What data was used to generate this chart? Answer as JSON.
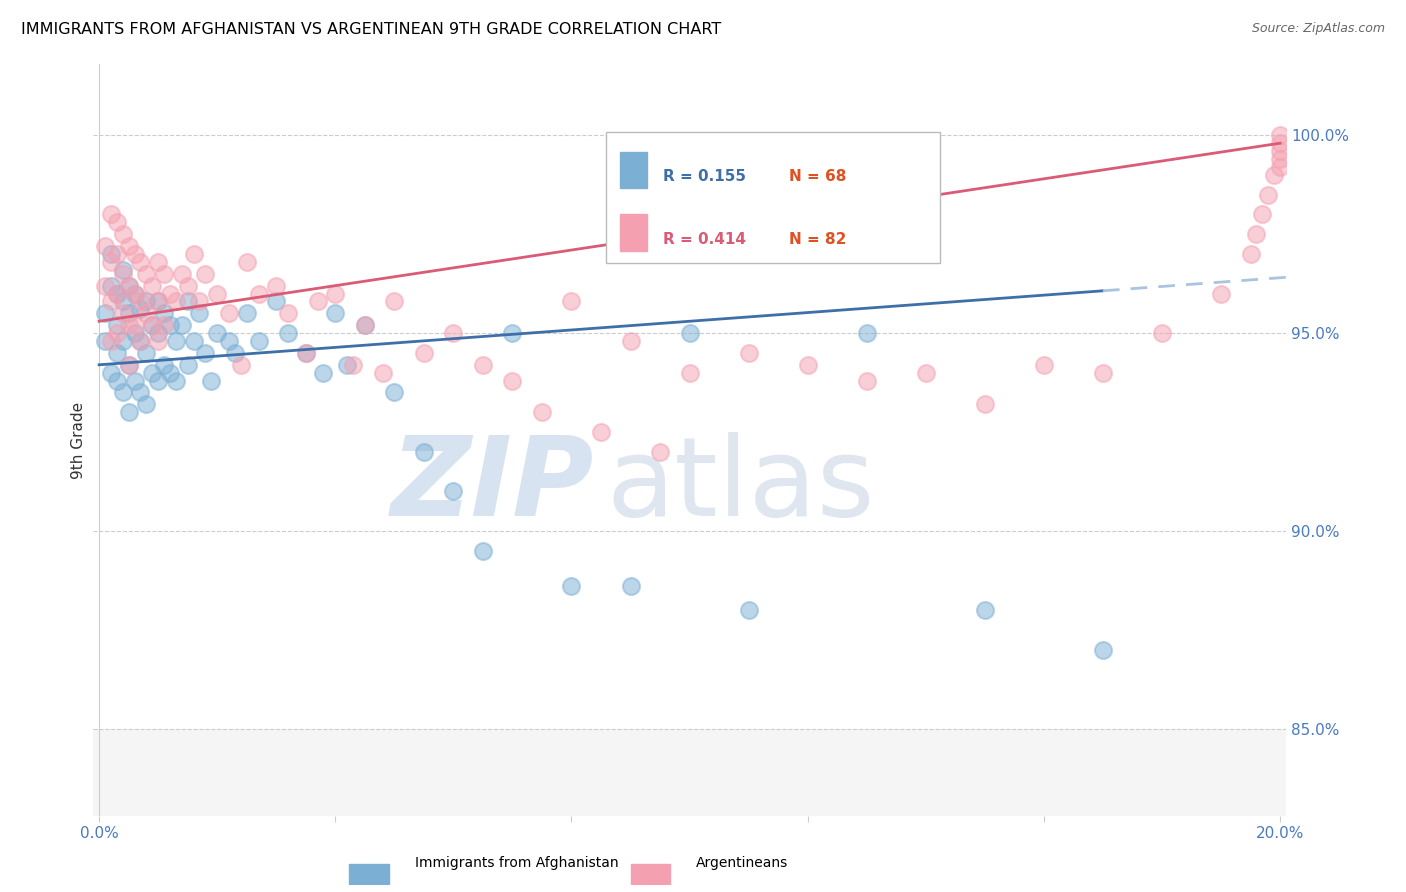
{
  "title": "IMMIGRANTS FROM AFGHANISTAN VS ARGENTINEAN 9TH GRADE CORRELATION CHART",
  "source": "Source: ZipAtlas.com",
  "ylabel": "9th Grade",
  "ylabel_right_labels": [
    "100.0%",
    "95.0%",
    "90.0%",
    "85.0%"
  ],
  "ylabel_right_values": [
    1.0,
    0.95,
    0.9,
    0.85
  ],
  "x_min": 0.0,
  "x_max": 0.2,
  "y_min": 0.828,
  "y_max": 1.018,
  "legend_blue_R": "R = 0.155",
  "legend_blue_N": "N = 68",
  "legend_pink_R": "R = 0.414",
  "legend_pink_N": "N = 82",
  "blue_color": "#7BAFD4",
  "pink_color": "#F4A0B0",
  "blue_line_color": "#3E6FA8",
  "pink_line_color": "#D95B76",
  "dashed_line_color": "#A8C4E0",
  "label_blue": "Immigrants from Afghanistan",
  "label_pink": "Argentineans",
  "blue_x": [
    0.001,
    0.001,
    0.002,
    0.002,
    0.002,
    0.003,
    0.003,
    0.003,
    0.003,
    0.004,
    0.004,
    0.004,
    0.004,
    0.005,
    0.005,
    0.005,
    0.005,
    0.006,
    0.006,
    0.006,
    0.007,
    0.007,
    0.007,
    0.008,
    0.008,
    0.008,
    0.009,
    0.009,
    0.01,
    0.01,
    0.01,
    0.011,
    0.011,
    0.012,
    0.012,
    0.013,
    0.013,
    0.014,
    0.015,
    0.015,
    0.016,
    0.017,
    0.018,
    0.019,
    0.02,
    0.022,
    0.023,
    0.025,
    0.027,
    0.03,
    0.032,
    0.035,
    0.038,
    0.04,
    0.042,
    0.045,
    0.05,
    0.055,
    0.06,
    0.065,
    0.07,
    0.08,
    0.09,
    0.1,
    0.11,
    0.13,
    0.15,
    0.17
  ],
  "blue_y": [
    0.955,
    0.948,
    0.962,
    0.97,
    0.94,
    0.96,
    0.952,
    0.945,
    0.938,
    0.958,
    0.966,
    0.948,
    0.935,
    0.962,
    0.955,
    0.942,
    0.93,
    0.96,
    0.95,
    0.938,
    0.956,
    0.948,
    0.935,
    0.958,
    0.945,
    0.932,
    0.952,
    0.94,
    0.958,
    0.95,
    0.938,
    0.955,
    0.942,
    0.952,
    0.94,
    0.948,
    0.938,
    0.952,
    0.958,
    0.942,
    0.948,
    0.955,
    0.945,
    0.938,
    0.95,
    0.948,
    0.945,
    0.955,
    0.948,
    0.958,
    0.95,
    0.945,
    0.94,
    0.955,
    0.942,
    0.952,
    0.935,
    0.92,
    0.91,
    0.895,
    0.95,
    0.886,
    0.886,
    0.95,
    0.88,
    0.95,
    0.88,
    0.87
  ],
  "pink_x": [
    0.001,
    0.001,
    0.002,
    0.002,
    0.002,
    0.002,
    0.003,
    0.003,
    0.003,
    0.003,
    0.004,
    0.004,
    0.004,
    0.005,
    0.005,
    0.005,
    0.005,
    0.006,
    0.006,
    0.006,
    0.007,
    0.007,
    0.007,
    0.008,
    0.008,
    0.009,
    0.009,
    0.01,
    0.01,
    0.01,
    0.011,
    0.011,
    0.012,
    0.013,
    0.014,
    0.015,
    0.016,
    0.017,
    0.018,
    0.02,
    0.022,
    0.024,
    0.025,
    0.027,
    0.03,
    0.032,
    0.035,
    0.037,
    0.04,
    0.043,
    0.045,
    0.048,
    0.05,
    0.055,
    0.06,
    0.065,
    0.07,
    0.075,
    0.08,
    0.085,
    0.09,
    0.095,
    0.1,
    0.11,
    0.12,
    0.13,
    0.14,
    0.15,
    0.16,
    0.17,
    0.18,
    0.19,
    0.195,
    0.196,
    0.197,
    0.198,
    0.199,
    0.2,
    0.2,
    0.2,
    0.2,
    0.2
  ],
  "pink_y": [
    0.972,
    0.962,
    0.98,
    0.968,
    0.958,
    0.948,
    0.978,
    0.97,
    0.96,
    0.95,
    0.975,
    0.965,
    0.955,
    0.972,
    0.962,
    0.952,
    0.942,
    0.97,
    0.96,
    0.952,
    0.968,
    0.958,
    0.948,
    0.965,
    0.955,
    0.962,
    0.952,
    0.968,
    0.958,
    0.948,
    0.965,
    0.952,
    0.96,
    0.958,
    0.965,
    0.962,
    0.97,
    0.958,
    0.965,
    0.96,
    0.955,
    0.942,
    0.968,
    0.96,
    0.962,
    0.955,
    0.945,
    0.958,
    0.96,
    0.942,
    0.952,
    0.94,
    0.958,
    0.945,
    0.95,
    0.942,
    0.938,
    0.93,
    0.958,
    0.925,
    0.948,
    0.92,
    0.94,
    0.945,
    0.942,
    0.938,
    0.94,
    0.932,
    0.942,
    0.94,
    0.95,
    0.96,
    0.97,
    0.975,
    0.98,
    0.985,
    0.99,
    0.992,
    0.994,
    0.996,
    0.998,
    1.0
  ]
}
